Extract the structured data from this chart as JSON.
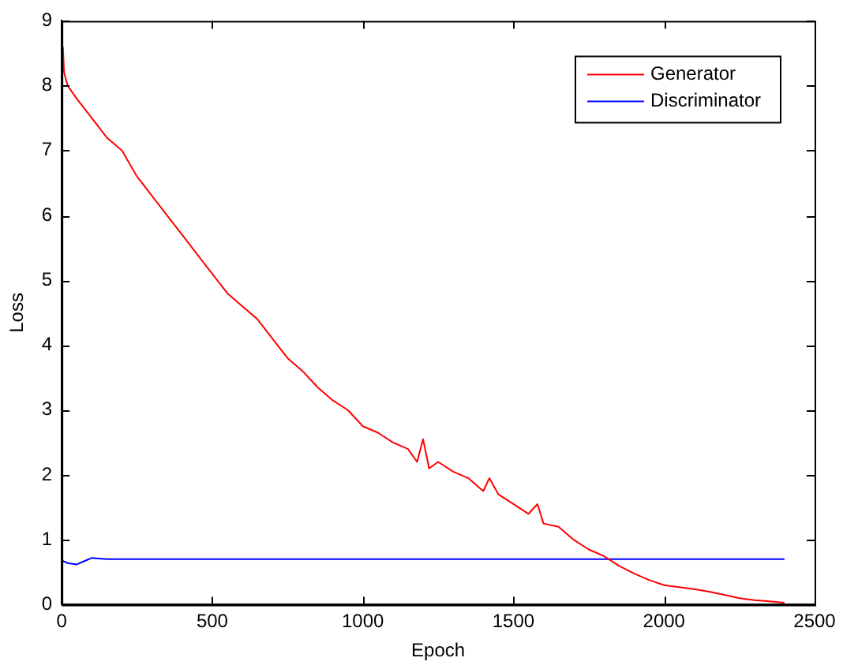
{
  "chart_data": {
    "type": "line",
    "xlabel": "Epoch",
    "ylabel": "Loss",
    "xlim": [
      0,
      2500
    ],
    "xticks": [
      0,
      500,
      1000,
      1500,
      2000,
      2500
    ],
    "ylim": [
      0,
      9
    ],
    "yticks": [
      0,
      1,
      2,
      3,
      4,
      5,
      6,
      7,
      8,
      9
    ],
    "grid": false,
    "legend": "top right",
    "marker": "none",
    "line_style": "solid",
    "series": [
      {
        "name": "Generator",
        "color": "#ff0000",
        "x": [
          4,
          8,
          20,
          50,
          100,
          150,
          200,
          250,
          300,
          350,
          400,
          450,
          500,
          550,
          600,
          650,
          700,
          750,
          800,
          850,
          900,
          950,
          1000,
          1050,
          1100,
          1150,
          1180,
          1200,
          1220,
          1250,
          1300,
          1350,
          1400,
          1420,
          1450,
          1500,
          1550,
          1580,
          1600,
          1650,
          1700,
          1750,
          1800,
          1850,
          1900,
          1950,
          2000,
          2050,
          2100,
          2150,
          2200,
          2250,
          2300,
          2350,
          2400
        ],
        "values": [
          8.6,
          8.2,
          8.0,
          7.8,
          7.5,
          7.2,
          7.0,
          6.6,
          6.3,
          6.0,
          5.7,
          5.4,
          5.1,
          4.8,
          4.6,
          4.4,
          4.1,
          3.8,
          3.6,
          3.35,
          3.15,
          3.0,
          2.75,
          2.65,
          2.5,
          2.4,
          2.2,
          2.55,
          2.1,
          2.2,
          2.05,
          1.95,
          1.75,
          1.95,
          1.7,
          1.55,
          1.4,
          1.55,
          1.25,
          1.2,
          1.0,
          0.85,
          0.75,
          0.6,
          0.48,
          0.38,
          0.3,
          0.27,
          0.24,
          0.2,
          0.15,
          0.1,
          0.07,
          0.05,
          0.03
        ]
      },
      {
        "name": "Discriminator",
        "color": "#0000ff",
        "x": [
          0,
          20,
          50,
          80,
          100,
          150,
          500,
          1000,
          1500,
          2000,
          2400
        ],
        "values": [
          0.68,
          0.64,
          0.62,
          0.68,
          0.72,
          0.7,
          0.7,
          0.7,
          0.7,
          0.7,
          0.7
        ]
      }
    ]
  }
}
